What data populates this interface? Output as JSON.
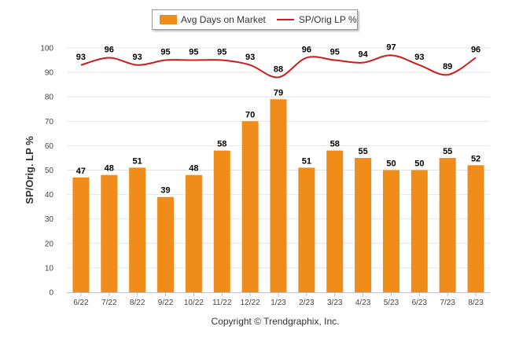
{
  "chart_data": {
    "type": "bar",
    "title": "",
    "xlabel": "",
    "ylabel": "SP/Orig. LP %",
    "ylim": [
      0,
      100
    ],
    "yticks": [
      0,
      10,
      20,
      30,
      40,
      50,
      60,
      70,
      80,
      90,
      100
    ],
    "grid": true,
    "legend_position": "top-center",
    "categories": [
      "6/22",
      "7/22",
      "8/22",
      "9/22",
      "10/22",
      "11/22",
      "12/22",
      "1/23",
      "2/23",
      "3/23",
      "4/23",
      "5/23",
      "6/23",
      "7/23",
      "8/23"
    ],
    "series": [
      {
        "name": "Avg Days on Market",
        "type": "bar",
        "color": "#f08c1a",
        "values": [
          47,
          48,
          51,
          39,
          48,
          58,
          70,
          79,
          51,
          58,
          55,
          50,
          50,
          55,
          52
        ]
      },
      {
        "name": "SP/Orig LP %",
        "type": "line",
        "color": "#cc1c1c",
        "values": [
          93,
          96,
          93,
          95,
          95,
          95,
          93,
          88,
          96,
          95,
          94,
          97,
          93,
          89,
          96
        ]
      }
    ]
  },
  "footer": {
    "copyright": "Copyright © Trendgraphix, Inc."
  }
}
